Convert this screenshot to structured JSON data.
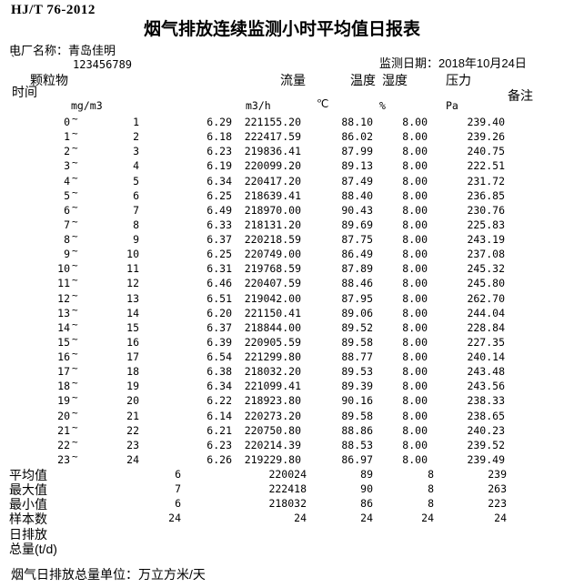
{
  "doc": {
    "standard": "HJ/T 76-2012",
    "title": "烟气排放连续监测小时平均值日报表",
    "plant_label": "电厂名称：",
    "plant_name": "青岛佳明",
    "backtick": "`",
    "plant_code": "123456789",
    "date_label": "监测日期：",
    "date_value": "2018年10月24日",
    "footer_note": "烟气日排放总量单位：万立方米/天"
  },
  "table": {
    "headers": {
      "time": "时间",
      "pm": "颗粒物",
      "flow": "流量",
      "temp": "温度",
      "humidity": "湿度",
      "pressure": "压力",
      "remark": "备注"
    },
    "units": {
      "pm": "mg/m3",
      "flow": "m3/h",
      "temp": "℃",
      "humidity": "%",
      "pressure": "Pa"
    },
    "rows": [
      {
        "start": "0",
        "end": "1",
        "pm": "6.29",
        "flow": "221155.20",
        "temp": "88.10",
        "hum": "8.00",
        "press": "239.40"
      },
      {
        "start": "1",
        "end": "2",
        "pm": "6.18",
        "flow": "222417.59",
        "temp": "86.02",
        "hum": "8.00",
        "press": "239.26"
      },
      {
        "start": "2",
        "end": "3",
        "pm": "6.23",
        "flow": "219836.41",
        "temp": "87.99",
        "hum": "8.00",
        "press": "240.75"
      },
      {
        "start": "3",
        "end": "4",
        "pm": "6.19",
        "flow": "220099.20",
        "temp": "89.13",
        "hum": "8.00",
        "press": "222.51"
      },
      {
        "start": "4",
        "end": "5",
        "pm": "6.34",
        "flow": "220417.20",
        "temp": "87.49",
        "hum": "8.00",
        "press": "231.72"
      },
      {
        "start": "5",
        "end": "6",
        "pm": "6.25",
        "flow": "218639.41",
        "temp": "88.40",
        "hum": "8.00",
        "press": "236.85"
      },
      {
        "start": "6",
        "end": "7",
        "pm": "6.49",
        "flow": "218970.00",
        "temp": "90.43",
        "hum": "8.00",
        "press": "230.76"
      },
      {
        "start": "7",
        "end": "8",
        "pm": "6.33",
        "flow": "218131.20",
        "temp": "89.69",
        "hum": "8.00",
        "press": "225.83"
      },
      {
        "start": "8",
        "end": "9",
        "pm": "6.37",
        "flow": "220218.59",
        "temp": "87.75",
        "hum": "8.00",
        "press": "243.19"
      },
      {
        "start": "9",
        "end": "10",
        "pm": "6.25",
        "flow": "220749.00",
        "temp": "86.49",
        "hum": "8.00",
        "press": "237.08"
      },
      {
        "start": "10",
        "end": "11",
        "pm": "6.31",
        "flow": "219768.59",
        "temp": "87.89",
        "hum": "8.00",
        "press": "245.32"
      },
      {
        "start": "11",
        "end": "12",
        "pm": "6.46",
        "flow": "220407.59",
        "temp": "88.46",
        "hum": "8.00",
        "press": "245.80"
      },
      {
        "start": "12",
        "end": "13",
        "pm": "6.51",
        "flow": "219042.00",
        "temp": "87.95",
        "hum": "8.00",
        "press": "262.70"
      },
      {
        "start": "13",
        "end": "14",
        "pm": "6.20",
        "flow": "221150.41",
        "temp": "89.06",
        "hum": "8.00",
        "press": "244.04"
      },
      {
        "start": "14",
        "end": "15",
        "pm": "6.37",
        "flow": "218844.00",
        "temp": "89.52",
        "hum": "8.00",
        "press": "228.84"
      },
      {
        "start": "15",
        "end": "16",
        "pm": "6.39",
        "flow": "220905.59",
        "temp": "89.58",
        "hum": "8.00",
        "press": "227.35"
      },
      {
        "start": "16",
        "end": "17",
        "pm": "6.54",
        "flow": "221299.80",
        "temp": "88.77",
        "hum": "8.00",
        "press": "240.14"
      },
      {
        "start": "17",
        "end": "18",
        "pm": "6.38",
        "flow": "218032.20",
        "temp": "89.53",
        "hum": "8.00",
        "press": "243.48"
      },
      {
        "start": "18",
        "end": "19",
        "pm": "6.34",
        "flow": "221099.41",
        "temp": "89.39",
        "hum": "8.00",
        "press": "243.56"
      },
      {
        "start": "19",
        "end": "20",
        "pm": "6.22",
        "flow": "218923.80",
        "temp": "90.16",
        "hum": "8.00",
        "press": "238.33"
      },
      {
        "start": "20",
        "end": "21",
        "pm": "6.14",
        "flow": "220273.20",
        "temp": "89.58",
        "hum": "8.00",
        "press": "238.65"
      },
      {
        "start": "21",
        "end": "22",
        "pm": "6.21",
        "flow": "220750.80",
        "temp": "88.86",
        "hum": "8.00",
        "press": "240.23"
      },
      {
        "start": "22",
        "end": "23",
        "pm": "6.23",
        "flow": "220214.39",
        "temp": "88.53",
        "hum": "8.00",
        "press": "239.52"
      },
      {
        "start": "23",
        "end": "24",
        "pm": "6.26",
        "flow": "219229.80",
        "temp": "86.97",
        "hum": "8.00",
        "press": "239.49"
      }
    ],
    "summary": [
      {
        "label": "平均值",
        "pm": "6",
        "flow": "220024",
        "temp": "89",
        "hum": "8",
        "press": "239"
      },
      {
        "label": "最大值",
        "pm": "7",
        "flow": "222418",
        "temp": "90",
        "hum": "8",
        "press": "263"
      },
      {
        "label": "最小值",
        "pm": "6",
        "flow": "218032",
        "temp": "86",
        "hum": "8",
        "press": "223"
      },
      {
        "label": "样本数",
        "pm": "24",
        "flow": "24",
        "temp": "24",
        "hum": "24",
        "press": "24"
      },
      {
        "label": "日排放",
        "pm": "",
        "flow": "",
        "temp": "",
        "hum": "",
        "press": ""
      },
      {
        "label": "总量(t/d)",
        "pm": "",
        "flow": "",
        "temp": "",
        "hum": "",
        "press": ""
      }
    ]
  }
}
